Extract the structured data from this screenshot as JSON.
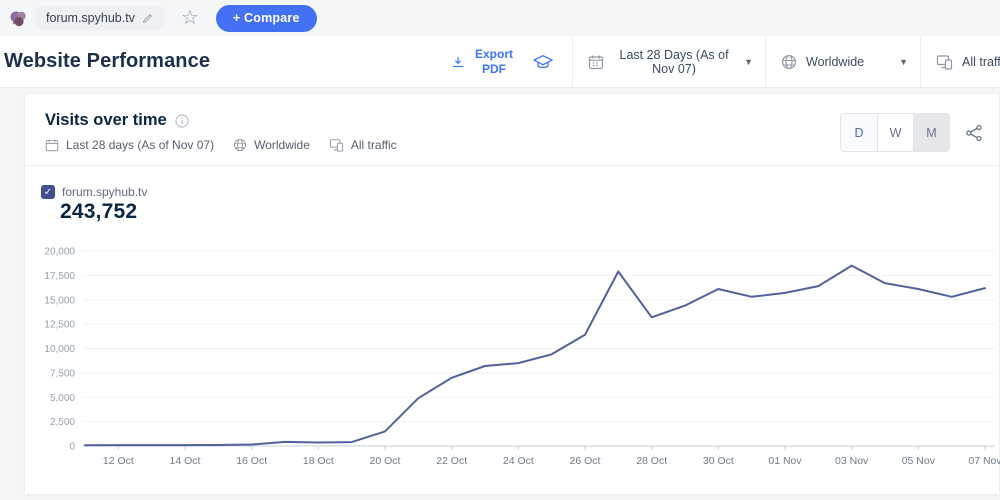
{
  "colors": {
    "accent_blue": "#4470f4",
    "title_navy": "#092540",
    "line": "#52619a",
    "checkbox_blue": "#42518e",
    "page_bg": "#f5f6f8",
    "grid": "#f1f2f4",
    "axis": "#c9cfd7"
  },
  "topbar": {
    "domain": "forum.spyhub.tv",
    "compare_label": "+ Compare"
  },
  "header": {
    "title": "Website Performance",
    "export_label": "Export PDF",
    "date_range": "Last 28 Days (As of Nov 07)",
    "region": "Worldwide",
    "traffic": "All traffic"
  },
  "card": {
    "title": "Visits over time",
    "date_range": "Last 28 days (As of Nov 07)",
    "region": "Worldwide",
    "traffic": "All traffic",
    "granularity": [
      "D",
      "W",
      "M"
    ],
    "active_granularity": "D",
    "legend_site": "forum.spyhub.tv",
    "legend_total": "243,752"
  },
  "chart_data": {
    "type": "line",
    "title": "Visits over time",
    "xlabel": "",
    "ylabel": "",
    "ylim": [
      0,
      20000
    ],
    "grid": true,
    "legend_position": "top-left",
    "total_visits": "243,752",
    "categories": [
      "11 Oct",
      "12 Oct",
      "13 Oct",
      "14 Oct",
      "15 Oct",
      "16 Oct",
      "17 Oct",
      "18 Oct",
      "19 Oct",
      "20 Oct",
      "21 Oct",
      "22 Oct",
      "23 Oct",
      "24 Oct",
      "25 Oct",
      "26 Oct",
      "27 Oct",
      "28 Oct",
      "29 Oct",
      "30 Oct",
      "31 Oct",
      "01 Nov",
      "02 Nov",
      "03 Nov",
      "04 Nov",
      "05 Nov",
      "06 Nov",
      "07 Nov"
    ],
    "series": [
      {
        "name": "forum.spyhub.tv",
        "color": "#52619a",
        "values": [
          80,
          90,
          90,
          90,
          100,
          150,
          420,
          360,
          400,
          1500,
          4900,
          7000,
          8200,
          8500,
          9400,
          11400,
          17900,
          13200,
          14400,
          16100,
          15300,
          15700,
          16400,
          18500,
          16700,
          16100,
          15300,
          16200
        ]
      }
    ],
    "x_tick_labels": [
      "12 Oct",
      "14 Oct",
      "16 Oct",
      "18 Oct",
      "20 Oct",
      "22 Oct",
      "24 Oct",
      "26 Oct",
      "28 Oct",
      "30 Oct",
      "01 Nov",
      "03 Nov",
      "05 Nov",
      "07 Nov"
    ],
    "y_tick_labels": [
      "0",
      "2,500",
      "5,000",
      "7,500",
      "10,000",
      "12,500",
      "15,000",
      "17,500",
      "20,000"
    ]
  }
}
